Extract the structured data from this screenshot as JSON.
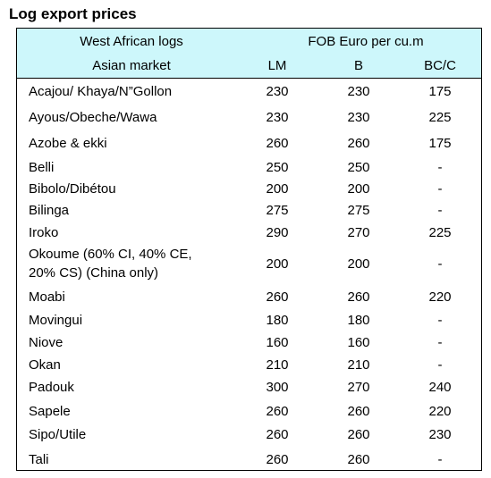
{
  "title": "Log export prices",
  "header": {
    "col1_line1": "West African logs",
    "col1_line2": "Asian market",
    "price_group": "FOB Euro per cu.m",
    "grades": [
      "LM",
      "B",
      "BC/C"
    ]
  },
  "rows": [
    {
      "name": "Acajou/ Khaya/N”Gollon",
      "lm": "230",
      "b": "230",
      "bcc": "175"
    },
    {
      "name": "Ayous/Obeche/Wawa",
      "lm": "230",
      "b": "230",
      "bcc": "225"
    },
    {
      "name": "Azobe & ekki",
      "lm": "260",
      "b": "260",
      "bcc": "175"
    },
    {
      "name": "Belli",
      "lm": "250",
      "b": "250",
      "bcc": "-"
    },
    {
      "name": "Bibolo/Dibétou",
      "lm": "200",
      "b": "200",
      "bcc": "-"
    },
    {
      "name": "Bilinga",
      "lm": "275",
      "b": "275",
      "bcc": "-"
    },
    {
      "name": "Iroko",
      "lm": "290",
      "b": "270",
      "bcc": "225"
    },
    {
      "name": "Okoume (60% CI, 40% CE,",
      "name2": "20% CS) (China only)",
      "lm": "200",
      "b": "200",
      "bcc": "-"
    },
    {
      "name": "Moabi",
      "lm": "260",
      "b": "260",
      "bcc": "220"
    },
    {
      "name": "Movingui",
      "lm": "180",
      "b": "180",
      "bcc": "-"
    },
    {
      "name": "Niove",
      "lm": "160",
      "b": "160",
      "bcc": "-"
    },
    {
      "name": "Okan",
      "lm": "210",
      "b": "210",
      "bcc": "-"
    },
    {
      "name": "Padouk",
      "lm": "300",
      "b": "270",
      "bcc": "240"
    },
    {
      "name": "Sapele",
      "lm": "260",
      "b": "260",
      "bcc": "220"
    },
    {
      "name": "Sipo/Utile",
      "lm": "260",
      "b": "260",
      "bcc": "230"
    },
    {
      "name": "Tali",
      "lm": "260",
      "b": "260",
      "bcc": "-"
    }
  ]
}
